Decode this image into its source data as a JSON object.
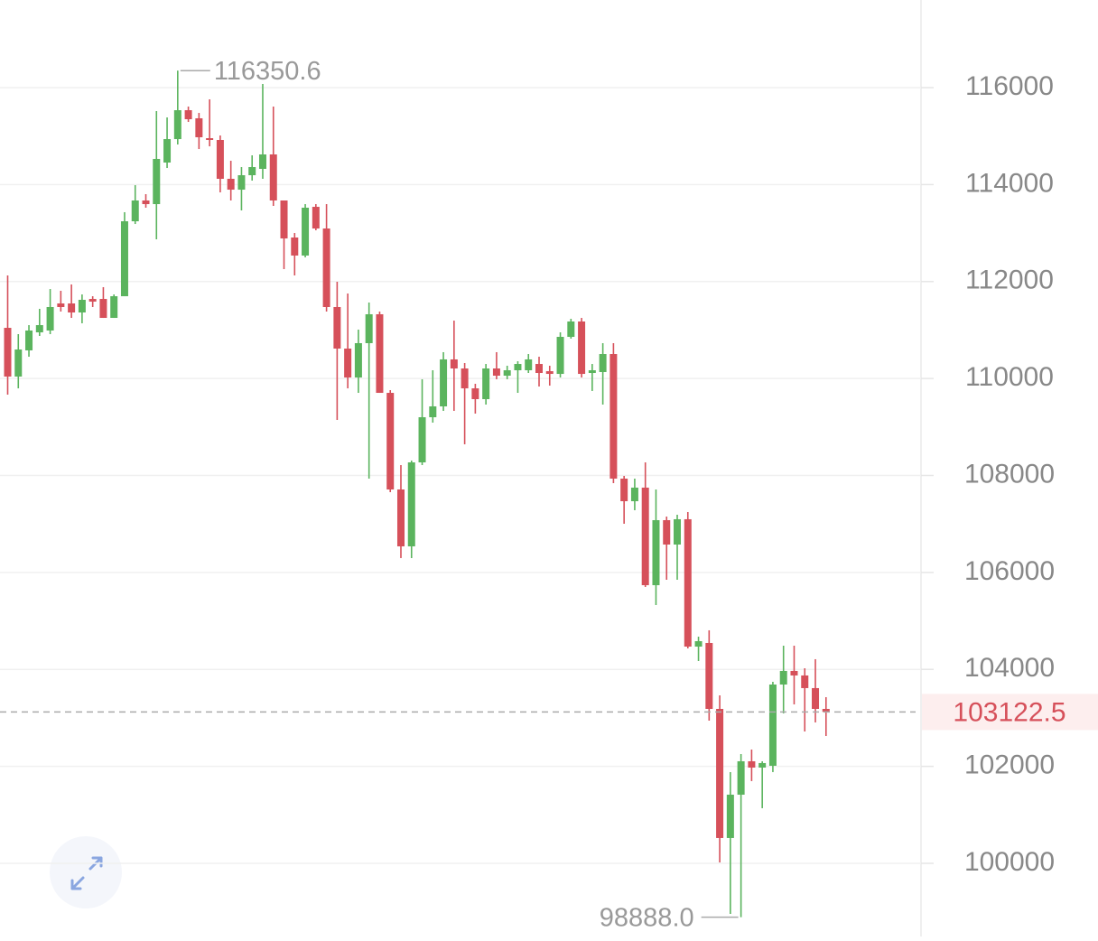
{
  "chart_data": {
    "type": "candlestick",
    "up_color": "#5bb45e",
    "down_color": "#d6505a",
    "ylim": [
      98491,
      117807
    ],
    "yticks": [
      100000,
      102000,
      104000,
      106000,
      108000,
      110000,
      112000,
      114000,
      116000
    ],
    "grid": true,
    "max_label": "116350.6",
    "min_label": "98888.0",
    "last_label": "103122.5",
    "open": [
      111045,
      110040,
      110580,
      110952,
      110990,
      111548,
      111548,
      111362,
      111641,
      111641,
      111250,
      111697,
      113243,
      113672,
      113597,
      114454,
      114938,
      115534,
      115367,
      114957,
      114920,
      114119,
      113895,
      114193,
      114324,
      114622,
      113672,
      112908,
      112536,
      113541,
      113094,
      111474,
      110617,
      110021,
      110729,
      111325,
      109704,
      107711,
      106538,
      108270,
      109201,
      109425,
      110394,
      110207,
      109797,
      109574,
      110207,
      110058,
      110170,
      110170,
      110300,
      110151,
      110095,
      110859,
      111176,
      110114,
      110133,
      110505,
      107935,
      107469,
      107749,
      105737,
      107078,
      106575,
      107097,
      104470,
      104545,
      103185,
      100522,
      101416,
      102105,
      101975,
      102012,
      103688,
      103968,
      103875,
      103614,
      103185
    ],
    "high": [
      112126,
      110915,
      111101,
      111437,
      111846,
      111809,
      111940,
      111734,
      111697,
      111884,
      111734,
      113430,
      113988,
      113802,
      115516,
      115385,
      116350.6,
      115609,
      115478,
      115758,
      115013,
      114491,
      114361,
      114603,
      116075,
      115609,
      113672,
      113001,
      113597,
      113597,
      113597,
      111995,
      111753,
      111008,
      111567,
      111381,
      109760,
      108214,
      108307,
      109984,
      110170,
      110543,
      111194,
      110319,
      109891,
      110300,
      110543,
      110263,
      110356,
      110505,
      110449,
      110263,
      110952,
      111232,
      111250,
      110300,
      110729,
      110729,
      107991,
      107935,
      108270,
      107711,
      107153,
      107190,
      107246,
      104675,
      104806,
      103465,
      101882,
      102254,
      102347,
      102105,
      103744,
      104489,
      104489,
      104024,
      104210,
      103427
    ],
    "low": [
      109667,
      109797,
      110449,
      110878,
      110915,
      111381,
      111250,
      111139,
      111474,
      111250,
      111250,
      111697,
      113187,
      113523,
      112871,
      114342,
      114827,
      115292,
      114733,
      114789,
      113839,
      113672,
      113467,
      114082,
      114119,
      113560,
      112256,
      112126,
      112498,
      113057,
      111381,
      109146,
      109797,
      109704,
      107935,
      109704,
      107655,
      106296,
      106296,
      108214,
      109090,
      109332,
      109332,
      108643,
      109276,
      109462,
      109984,
      109984,
      109704,
      110114,
      109835,
      109853,
      110021,
      110822,
      110021,
      109742,
      109462,
      107842,
      107004,
      107283,
      105700,
      105327,
      105849,
      105849,
      104433,
      104172,
      102943,
      100019,
      98957,
      98888,
      101696,
      101137,
      101882,
      103092,
      103278,
      102720,
      102906,
      102626
    ],
    "close": [
      110040,
      110598,
      110990,
      111101,
      111474,
      111474,
      111362,
      111623,
      111586,
      111250,
      111697,
      113243,
      113672,
      113597,
      114529,
      114938,
      115534,
      115348,
      114976,
      114920,
      114119,
      113895,
      114193,
      114361,
      114622,
      113672,
      112889,
      112536,
      113523,
      113094,
      111474,
      110617,
      110021,
      110729,
      111325,
      109704,
      107711,
      106538,
      108270,
      109201,
      109425,
      110394,
      110207,
      109797,
      109574,
      110207,
      110058,
      110170,
      110300,
      110394,
      110114,
      110095,
      110859,
      111176,
      110095,
      110170,
      110505,
      107935,
      107469,
      107749,
      105737,
      107078,
      106575,
      107097,
      104470,
      104582,
      103185,
      100522,
      101416,
      102105,
      101975,
      102068,
      103688,
      103968,
      103875,
      103614,
      103185,
      103122.5
    ]
  }
}
